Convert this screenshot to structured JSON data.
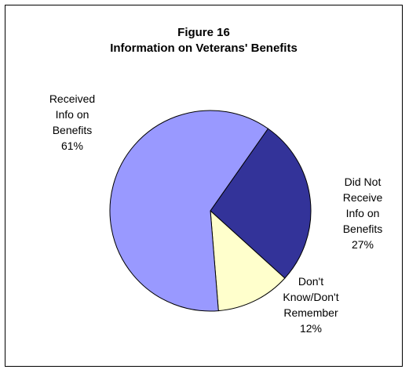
{
  "chart_data": {
    "type": "pie",
    "title": [
      "Figure 16",
      "Information on Veterans' Benefits"
    ],
    "slices": [
      {
        "label_lines": [
          "Did Not",
          "Receive",
          "Info on",
          "Benefits",
          "27%"
        ],
        "value": 27,
        "color": "#333399"
      },
      {
        "label_lines": [
          "Don't",
          "Know/Don't",
          "Remember",
          "12%"
        ],
        "value": 12,
        "color": "#FFFFCC"
      },
      {
        "label_lines": [
          "Received",
          "Info on",
          "Benefits",
          "61%"
        ],
        "value": 61,
        "color": "#9999FF"
      }
    ]
  }
}
